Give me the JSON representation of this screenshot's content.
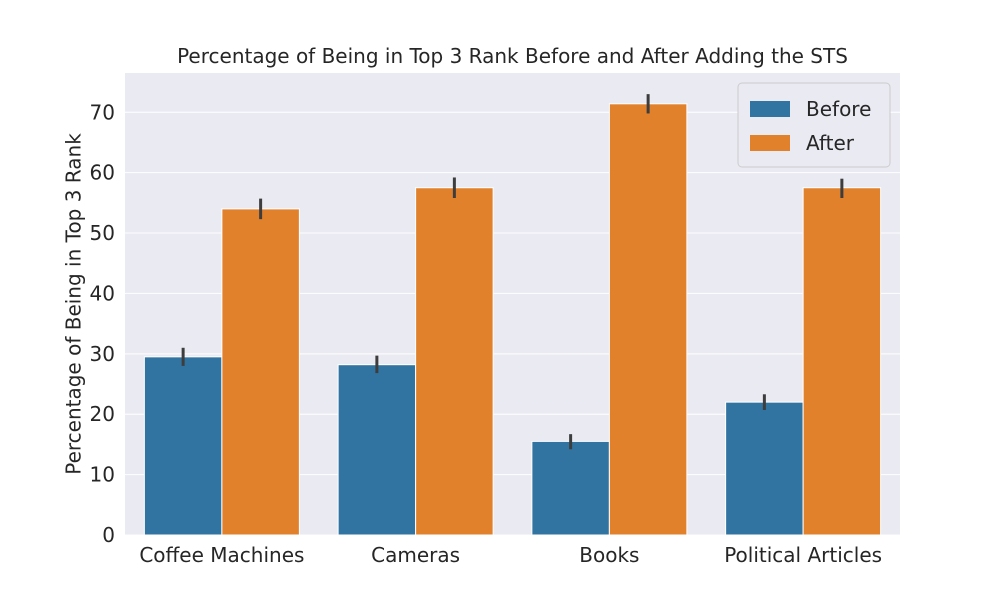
{
  "chart_data": {
    "type": "bar",
    "title": "Percentage of Being in Top 3 Rank Before and After Adding the STS",
    "xlabel": "",
    "ylabel": "Percentage of Being in Top 3 Rank",
    "categories": [
      "Coffee Machines",
      "Cameras",
      "Books",
      "Political Articles"
    ],
    "series": [
      {
        "name": "Before",
        "color": "#3274a1",
        "values": [
          29.5,
          28.2,
          15.5,
          22.0
        ],
        "error_low": [
          28.0,
          26.8,
          14.2,
          20.7
        ],
        "error_high": [
          31.0,
          29.7,
          16.7,
          23.3
        ]
      },
      {
        "name": "After",
        "color": "#e1812c",
        "values": [
          54.0,
          57.5,
          71.4,
          57.5
        ],
        "error_low": [
          52.3,
          55.8,
          69.8,
          55.8
        ],
        "error_high": [
          55.7,
          59.2,
          73.0,
          59.0
        ]
      }
    ],
    "ylim": [
      0,
      76.5
    ],
    "yticks": [
      0,
      10,
      20,
      30,
      40,
      50,
      60,
      70
    ],
    "grid": true,
    "legend_position": "top-right",
    "background_color": "#eaeaf2"
  }
}
